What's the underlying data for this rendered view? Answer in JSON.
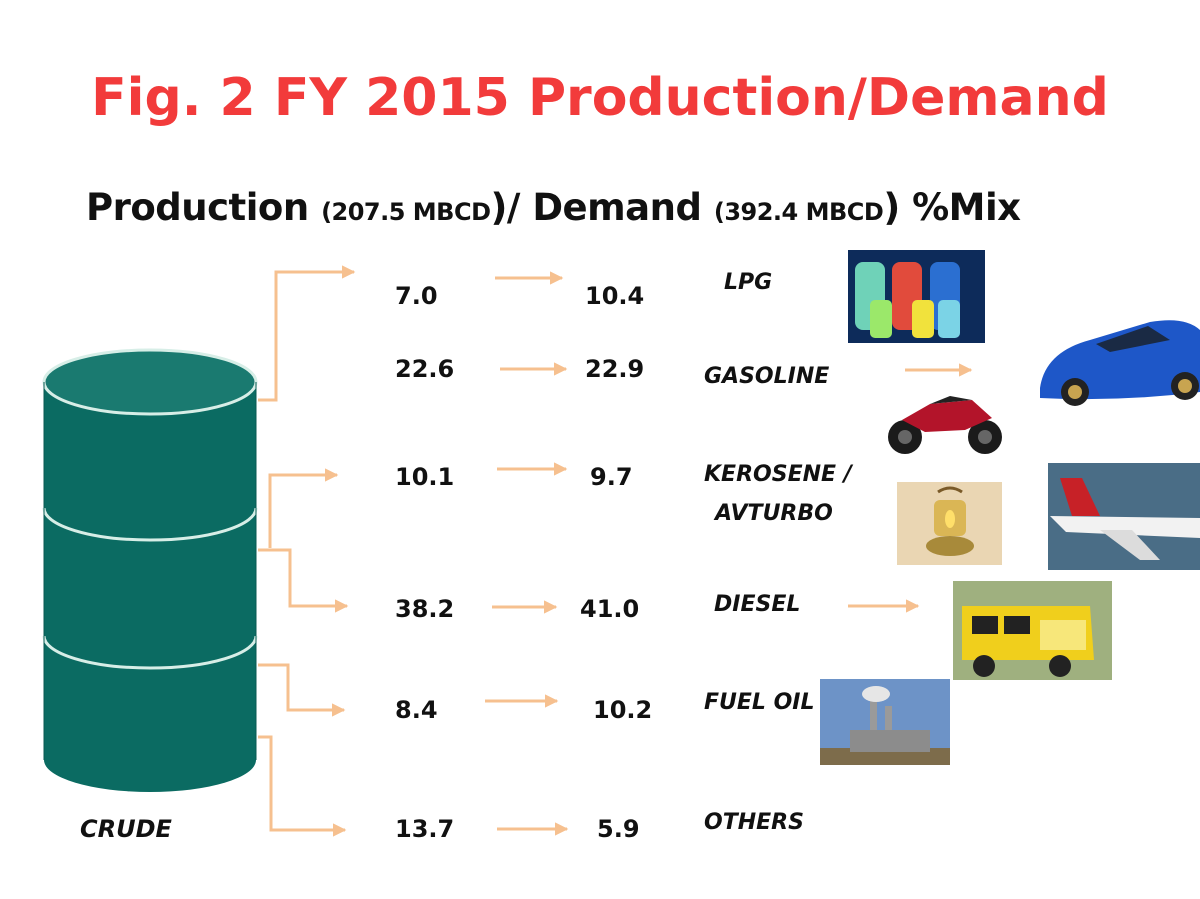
{
  "title": "Fig. 2 FY 2015 Production/Demand",
  "subtitle": {
    "part1": "Production ",
    "production_value": "(207.5 MBCD",
    "part2": ")/ Demand ",
    "demand_value": "(392.4 MBCD",
    "part3": ") %Mix"
  },
  "crude_label": "CRUDE",
  "rows": [
    {
      "product": "LPG",
      "production": "7.0",
      "demand": "10.4"
    },
    {
      "product": "GASOLINE",
      "production": "22.6",
      "demand": "22.9"
    },
    {
      "product": "KEROSENE /",
      "product_line2": "AVTURBO",
      "production": "10.1",
      "demand": "9.7"
    },
    {
      "product": "DIESEL",
      "production": "38.2",
      "demand": "41.0"
    },
    {
      "product": "FUEL OIL",
      "production": "8.4",
      "demand": "10.2"
    },
    {
      "product": "OTHERS",
      "production": "13.7",
      "demand": "5.9"
    }
  ],
  "images": [
    "lpg-cylinders",
    "rally-car",
    "motorcycle",
    "kerosene-lantern",
    "airplane",
    "jeepney",
    "power-plant"
  ],
  "colors": {
    "title": "#f23b3b",
    "barrel": "#0b6b62",
    "arrow": "#f6c08f",
    "text": "#111111"
  }
}
